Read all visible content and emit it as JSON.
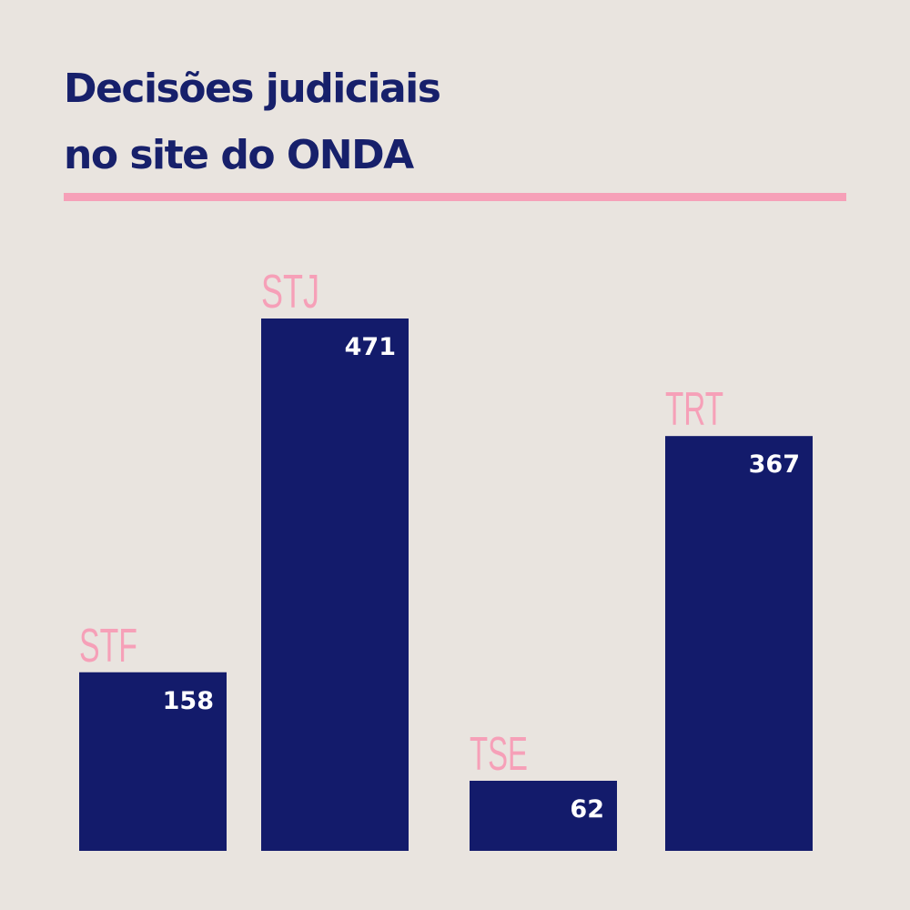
{
  "chart_data": {
    "type": "bar",
    "title": [
      "Decisões judiciais",
      "no site do ONDA"
    ],
    "categories": [
      "STF",
      "STJ",
      "TSE",
      "TRT"
    ],
    "values": [
      158,
      471,
      62,
      367
    ],
    "color": "#131b6b",
    "label_color": "#f6a0b8"
  }
}
